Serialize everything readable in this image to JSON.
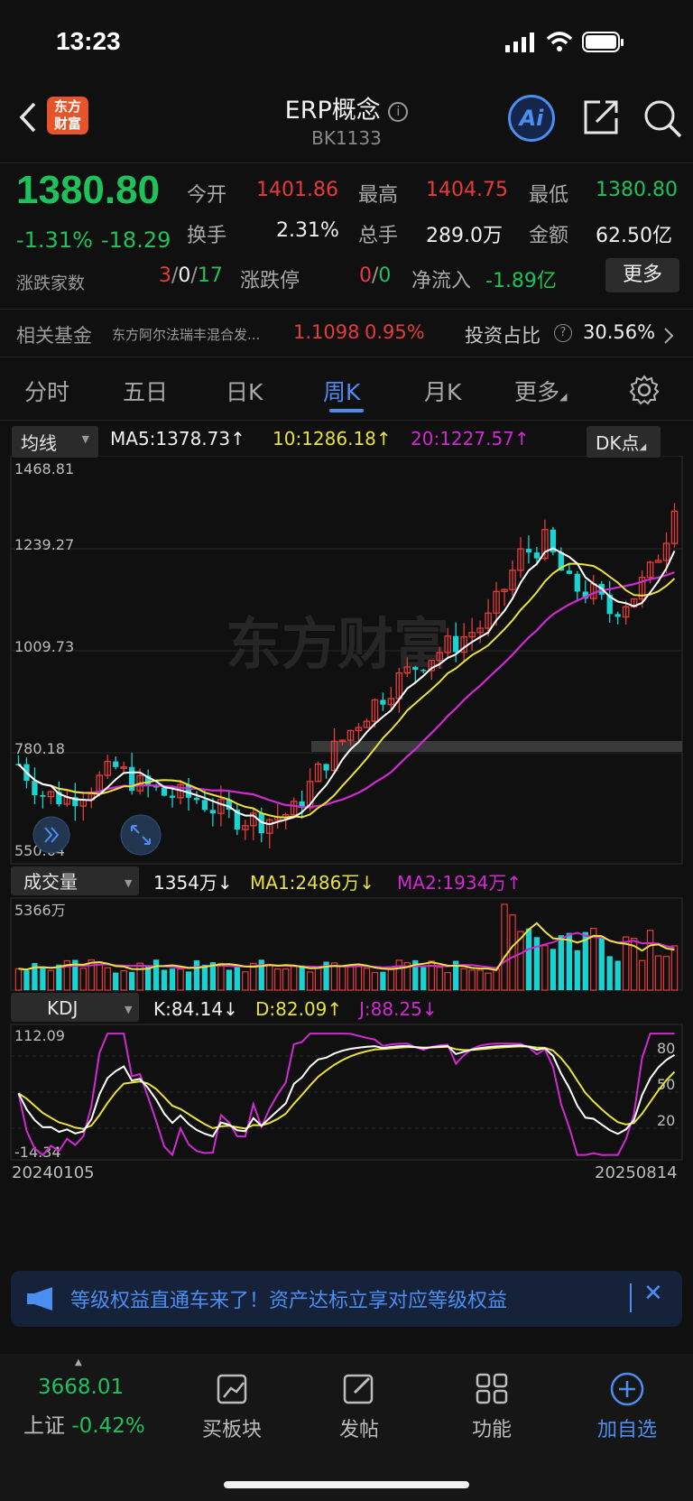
{
  "status_bar": {
    "time": "13:23"
  },
  "header": {
    "title": "ERP概念",
    "code": "BK1133",
    "logo_line1": "东方",
    "logo_line2": "财富",
    "ai_label": "Ai"
  },
  "quote": {
    "price": "1380.80",
    "change_pct": "-1.31%",
    "change": "-18.29",
    "open_label": "今开",
    "open": "1401.86",
    "high_label": "最高",
    "high": "1404.75",
    "low_label": "最低",
    "low": "1380.80",
    "turnover_label": "换手",
    "turnover": "2.31%",
    "volume_label": "总手",
    "volume": "289.0万",
    "amount_label": "金额",
    "amount": "62.50亿",
    "breadth_label": "涨跌家数",
    "breadth_up": "3",
    "breadth_flat": "0",
    "breadth_down": "17",
    "sep": "/",
    "limit_label": "涨跌停",
    "limit_up": "0",
    "limit_down": "0",
    "netflow_label": "净流入",
    "netflow": "-1.89亿",
    "more_button": "更多"
  },
  "fund": {
    "label": "相关基金",
    "name": "东方阿尔法瑞丰混合发...",
    "nav": "1.1098",
    "change": "0.95%",
    "ratio_label": "投资占比",
    "ratio": "30.56%"
  },
  "tabs": [
    {
      "label": "分时"
    },
    {
      "label": "五日"
    },
    {
      "label": "日K"
    },
    {
      "label": "周K",
      "active": true
    },
    {
      "label": "月K"
    },
    {
      "label": "更多"
    }
  ],
  "kline": {
    "indicator_select": "均线",
    "ma5": "MA5:1378.73↑",
    "ma10": "10:1286.18↑",
    "ma20": "20:1227.57↑",
    "dk_button": "DK点",
    "y_labels": [
      "1468.81",
      "1239.27",
      "1009.73",
      "780.18",
      "550.64"
    ],
    "watermark": "东方财富"
  },
  "volume": {
    "select": "成交量",
    "current": "1354万↓",
    "ma1": "MA1:2486万↓",
    "ma2": "MA2:1934万↑",
    "max_label": "5366万"
  },
  "kdj": {
    "select": "KDJ",
    "k": "K:84.14↓",
    "d": "D:82.09↑",
    "j": "J:88.25↓",
    "top_label": "112.09",
    "bottom_label": "-14.34",
    "levels": [
      "80",
      "50",
      "20"
    ]
  },
  "dates": {
    "start": "20240105",
    "end": "20250814"
  },
  "banner": {
    "text": "等级权益直通车来了！资产达标立享对应等级权益"
  },
  "bottom_bar": {
    "index_value": "3668.01",
    "index_name": "上证",
    "index_change": "-0.42%",
    "items": [
      {
        "label": "买板块"
      },
      {
        "label": "发帖"
      },
      {
        "label": "功能"
      },
      {
        "label": "加自选"
      }
    ]
  },
  "colors": {
    "up": "#e63b3b",
    "down": "#19d3d3",
    "ma5": "#ffffff",
    "ma10": "#e8e23a",
    "ma20": "#d12ad1",
    "accent": "#4b8ef0"
  },
  "chart_data": {
    "type": "candlestick",
    "x_range": [
      "20240105",
      "20250814"
    ],
    "ylim": [
      550.64,
      1468.81
    ],
    "candles_count": 82
  }
}
